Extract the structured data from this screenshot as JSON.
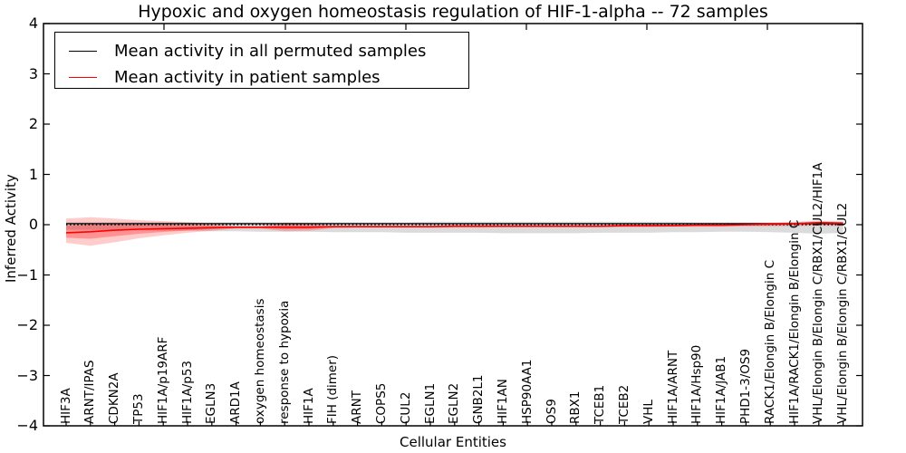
{
  "title": "Hypoxic and oxygen homeostasis regulation of HIF-1-alpha -- 72 samples",
  "legend": {
    "items": [
      {
        "label": "Mean activity in all permuted samples",
        "color": "#000000"
      },
      {
        "label": "Mean activity in patient samples",
        "color": "#ff0000"
      }
    ]
  },
  "axes": {
    "xlabel": "Cellular Entities",
    "ylabel": "Inferred Activity",
    "ytick_labels": [
      "4",
      "3",
      "2",
      "1",
      "0",
      "−1",
      "−2",
      "−3",
      "−4"
    ]
  },
  "colors": {
    "permuted_line": "#000000",
    "patient_line": "#ff0000",
    "permuted_band": "#999999",
    "patient_band": "#ff0000",
    "frame": "#000000"
  },
  "chart_data": {
    "type": "line",
    "title": "Hypoxic and oxygen homeostasis regulation of HIF-1-alpha -- 72 samples",
    "xlabel": "Cellular Entities",
    "ylabel": "Inferred Activity",
    "ylim": [
      -4,
      4
    ],
    "yticks": [
      4,
      3,
      2,
      1,
      0,
      -1,
      -2,
      -3,
      -4
    ],
    "grid": false,
    "legend_position": "upper left",
    "baseline": 0,
    "baseline_style": "dotted",
    "categories": [
      "HIF3A",
      "ARNT/IPAS",
      "CDKN2A",
      "TP53",
      "HIF1A/p19ARF",
      "HIF1A/p53",
      "EGLN3",
      "ARD1A",
      "oxygen homeostasis",
      "response to hypoxia",
      "HIF1A",
      "FIH (dimer)",
      "ARNT",
      "COPS5",
      "CUL2",
      "EGLN1",
      "EGLN2",
      "GNB2L1",
      "HIF1AN",
      "HSP90AA1",
      "OS9",
      "RBX1",
      "TCEB1",
      "TCEB2",
      "VHL",
      "HIF1A/ARNT",
      "HIF1A/Hsp90",
      "HIF1A/JAB1",
      "PHD1-3/OS9",
      "RACK1/Elongin B/Elongin C",
      "HIF1A/RACK1/Elongin B/Elongin C",
      "VHL/Elongin B/Elongin C/RBX1/CUL2/HIF1A",
      "VHL/Elongin B/Elongin C/RBX1/CUL2"
    ],
    "series": [
      {
        "name": "Mean activity in all permuted samples",
        "color": "#000000",
        "values": [
          0.02,
          0.02,
          0.02,
          0.02,
          0.02,
          0.02,
          0.02,
          0.02,
          0.02,
          0.02,
          0.02,
          0.02,
          0.02,
          0.02,
          0.02,
          0.02,
          0.02,
          0.02,
          0.02,
          0.02,
          0.02,
          0.02,
          0.02,
          0.02,
          0.02,
          0.02,
          0.02,
          0.02,
          0.02,
          0.02,
          0.02,
          0.02,
          0.02
        ],
        "band_upper": [
          0.05,
          0.05,
          0.05,
          0.05,
          0.05,
          0.05,
          0.05,
          0.05,
          0.05,
          0.05,
          0.05,
          0.05,
          0.05,
          0.05,
          0.05,
          0.06,
          0.06,
          0.06,
          0.06,
          0.06,
          0.06,
          0.06,
          0.06,
          0.06,
          0.06,
          0.06,
          0.05,
          0.05,
          0.05,
          0.05,
          0.06,
          0.06,
          0.06
        ],
        "band_lower": [
          -0.1,
          -0.1,
          -0.11,
          -0.11,
          -0.12,
          -0.12,
          -0.13,
          -0.13,
          -0.14,
          -0.14,
          -0.14,
          -0.15,
          -0.15,
          -0.15,
          -0.16,
          -0.16,
          -0.16,
          -0.16,
          -0.17,
          -0.17,
          -0.17,
          -0.17,
          -0.16,
          -0.16,
          -0.16,
          -0.15,
          -0.15,
          -0.14,
          -0.14,
          -0.15,
          -0.16,
          -0.18,
          -0.16
        ]
      },
      {
        "name": "Mean activity in patient samples",
        "color": "#ff0000",
        "values": [
          -0.16,
          -0.14,
          -0.11,
          -0.09,
          -0.08,
          -0.07,
          -0.06,
          -0.05,
          -0.05,
          -0.05,
          -0.05,
          -0.04,
          -0.04,
          -0.04,
          -0.04,
          -0.04,
          -0.03,
          -0.03,
          -0.03,
          -0.03,
          -0.03,
          -0.03,
          -0.03,
          -0.02,
          -0.02,
          -0.02,
          -0.01,
          -0.01,
          0.0,
          0.01,
          0.02,
          0.04,
          0.03
        ],
        "band_upper": [
          0.12,
          0.15,
          0.12,
          0.09,
          0.07,
          0.05,
          0.02,
          -0.03,
          -0.03,
          0.04,
          0.03,
          -0.02,
          -0.02,
          -0.02,
          -0.02,
          -0.02,
          -0.01,
          -0.01,
          -0.01,
          -0.01,
          -0.01,
          -0.01,
          -0.01,
          0.0,
          0.0,
          0.0,
          0.01,
          0.01,
          0.02,
          0.03,
          0.05,
          0.08,
          0.06
        ],
        "band_lower": [
          -0.36,
          -0.42,
          -0.35,
          -0.27,
          -0.21,
          -0.16,
          -0.12,
          -0.08,
          -0.08,
          -0.13,
          -0.12,
          -0.07,
          -0.06,
          -0.06,
          -0.06,
          -0.06,
          -0.06,
          -0.06,
          -0.05,
          -0.05,
          -0.05,
          -0.05,
          -0.05,
          -0.05,
          -0.05,
          -0.04,
          -0.04,
          -0.04,
          -0.03,
          -0.03,
          -0.03,
          -0.02,
          -0.03
        ]
      }
    ]
  }
}
